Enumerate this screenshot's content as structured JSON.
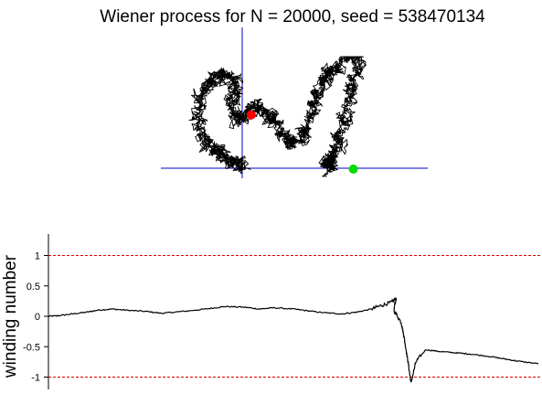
{
  "chart_data": [
    {
      "type": "line",
      "title": "Wiener process for N = 20000, seed = 538470134",
      "xlabel": "",
      "ylabel": "",
      "axes": "crosshair through origin, no ticks",
      "start_marker_color": "#ff0000",
      "end_marker_color": "#00dd00",
      "path_color": "#000000",
      "axis_color": "#0000cc",
      "path_extent_note": "random walk path, anchors approximated",
      "path_anchors": [
        [
          0.0,
          0.0
        ],
        [
          -0.6,
          0.15
        ],
        [
          -1.2,
          0.25
        ],
        [
          -1.8,
          0.45
        ],
        [
          -2.6,
          0.55
        ],
        [
          -3.1,
          0.9
        ],
        [
          -3.0,
          1.5
        ],
        [
          -2.5,
          1.8
        ],
        [
          -1.7,
          2.0
        ],
        [
          -1.0,
          1.95
        ],
        [
          -0.4,
          1.7
        ],
        [
          -0.7,
          1.3
        ],
        [
          -0.3,
          1.0
        ],
        [
          0.2,
          1.1
        ],
        [
          0.9,
          1.3
        ],
        [
          1.5,
          1.2
        ],
        [
          2.2,
          1.0
        ],
        [
          2.9,
          0.7
        ],
        [
          3.6,
          0.5
        ],
        [
          4.3,
          0.7
        ],
        [
          4.9,
          1.1
        ],
        [
          5.3,
          1.5
        ],
        [
          5.8,
          1.8
        ],
        [
          6.3,
          2.0
        ],
        [
          7.0,
          2.1
        ],
        [
          7.6,
          2.6
        ],
        [
          7.9,
          2.9
        ],
        [
          8.3,
          2.4
        ],
        [
          8.1,
          1.9
        ],
        [
          7.7,
          1.4
        ],
        [
          7.3,
          0.9
        ],
        [
          6.8,
          0.5
        ],
        [
          6.4,
          0.2
        ],
        [
          6.0,
          0.1
        ],
        [
          6.5,
          0.0
        ]
      ]
    },
    {
      "type": "line",
      "title": "",
      "xlabel": "",
      "ylabel": "winding number",
      "ylim": [
        -1.15,
        1.25
      ],
      "yticks": [
        "1",
        "0.5",
        "0",
        "-0.5",
        "-1"
      ],
      "ytick_values": [
        1,
        0.5,
        0,
        -0.5,
        -1
      ],
      "reference_lines": [
        1,
        -1
      ],
      "reference_line_color": "#dd0000",
      "series_color": "#000000",
      "x": [
        0,
        0.02,
        0.05,
        0.08,
        0.1,
        0.13,
        0.16,
        0.2,
        0.23,
        0.26,
        0.3,
        0.33,
        0.36,
        0.4,
        0.43,
        0.46,
        0.5,
        0.53,
        0.56,
        0.6,
        0.63,
        0.66,
        0.68,
        0.7,
        0.71,
        0.705,
        0.72,
        0.725,
        0.73,
        0.735,
        0.74,
        0.75,
        0.77,
        0.8,
        0.83,
        0.86,
        0.9,
        0.93,
        0.96,
        1.0
      ],
      "values": [
        0.0,
        0.01,
        0.04,
        0.07,
        0.1,
        0.12,
        0.1,
        0.08,
        0.05,
        0.07,
        0.1,
        0.13,
        0.16,
        0.15,
        0.12,
        0.14,
        0.12,
        0.09,
        0.06,
        0.04,
        0.07,
        0.12,
        0.18,
        0.23,
        0.3,
        0.1,
        -0.1,
        -0.3,
        -0.55,
        -0.8,
        -1.1,
        -0.75,
        -0.55,
        -0.58,
        -0.6,
        -0.62,
        -0.66,
        -0.7,
        -0.74,
        -0.78
      ]
    }
  ]
}
